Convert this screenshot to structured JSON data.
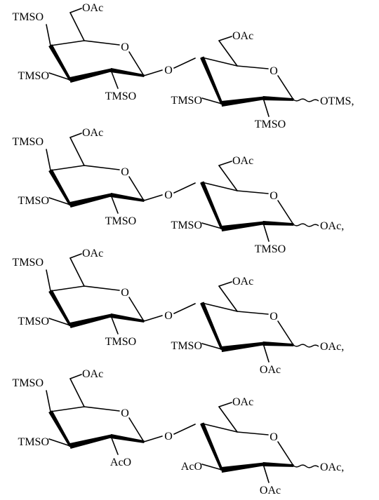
{
  "structures": [
    {
      "gal": {
        "o6": "OAc",
        "o4": "TMSO",
        "o3": "TMSO",
        "o2": "TMSO",
        "ring_o": "O"
      },
      "link_o": "O",
      "glc": {
        "o6": "OAc",
        "o3": "TMSO",
        "o2": "TMSO",
        "ring_o": "O",
        "anomeric": "OTMS,"
      }
    },
    {
      "gal": {
        "o6": "OAc",
        "o4": "TMSO",
        "o3": "TMSO",
        "o2": "TMSO",
        "ring_o": "O"
      },
      "link_o": "O",
      "glc": {
        "o6": "OAc",
        "o3": "TMSO",
        "o2": "TMSO",
        "ring_o": "O",
        "anomeric": "OAc,"
      }
    },
    {
      "gal": {
        "o6": "OAc",
        "o4": "TMSO",
        "o3": "TMSO",
        "o2": "TMSO",
        "ring_o": "O"
      },
      "link_o": "O",
      "glc": {
        "o6": "OAc",
        "o3": "TMSO",
        "o2": "OAc",
        "ring_o": "O",
        "anomeric": "OAc,"
      }
    },
    {
      "gal": {
        "o6": "OAc",
        "o4": "TMSO",
        "o3": "TMSO",
        "o2": "AcO",
        "ring_o": "O"
      },
      "link_o": "O",
      "glc": {
        "o6": "OAc",
        "o3": "AcO",
        "o2": "OAc",
        "ring_o": "O",
        "anomeric": "OAc,"
      }
    }
  ]
}
